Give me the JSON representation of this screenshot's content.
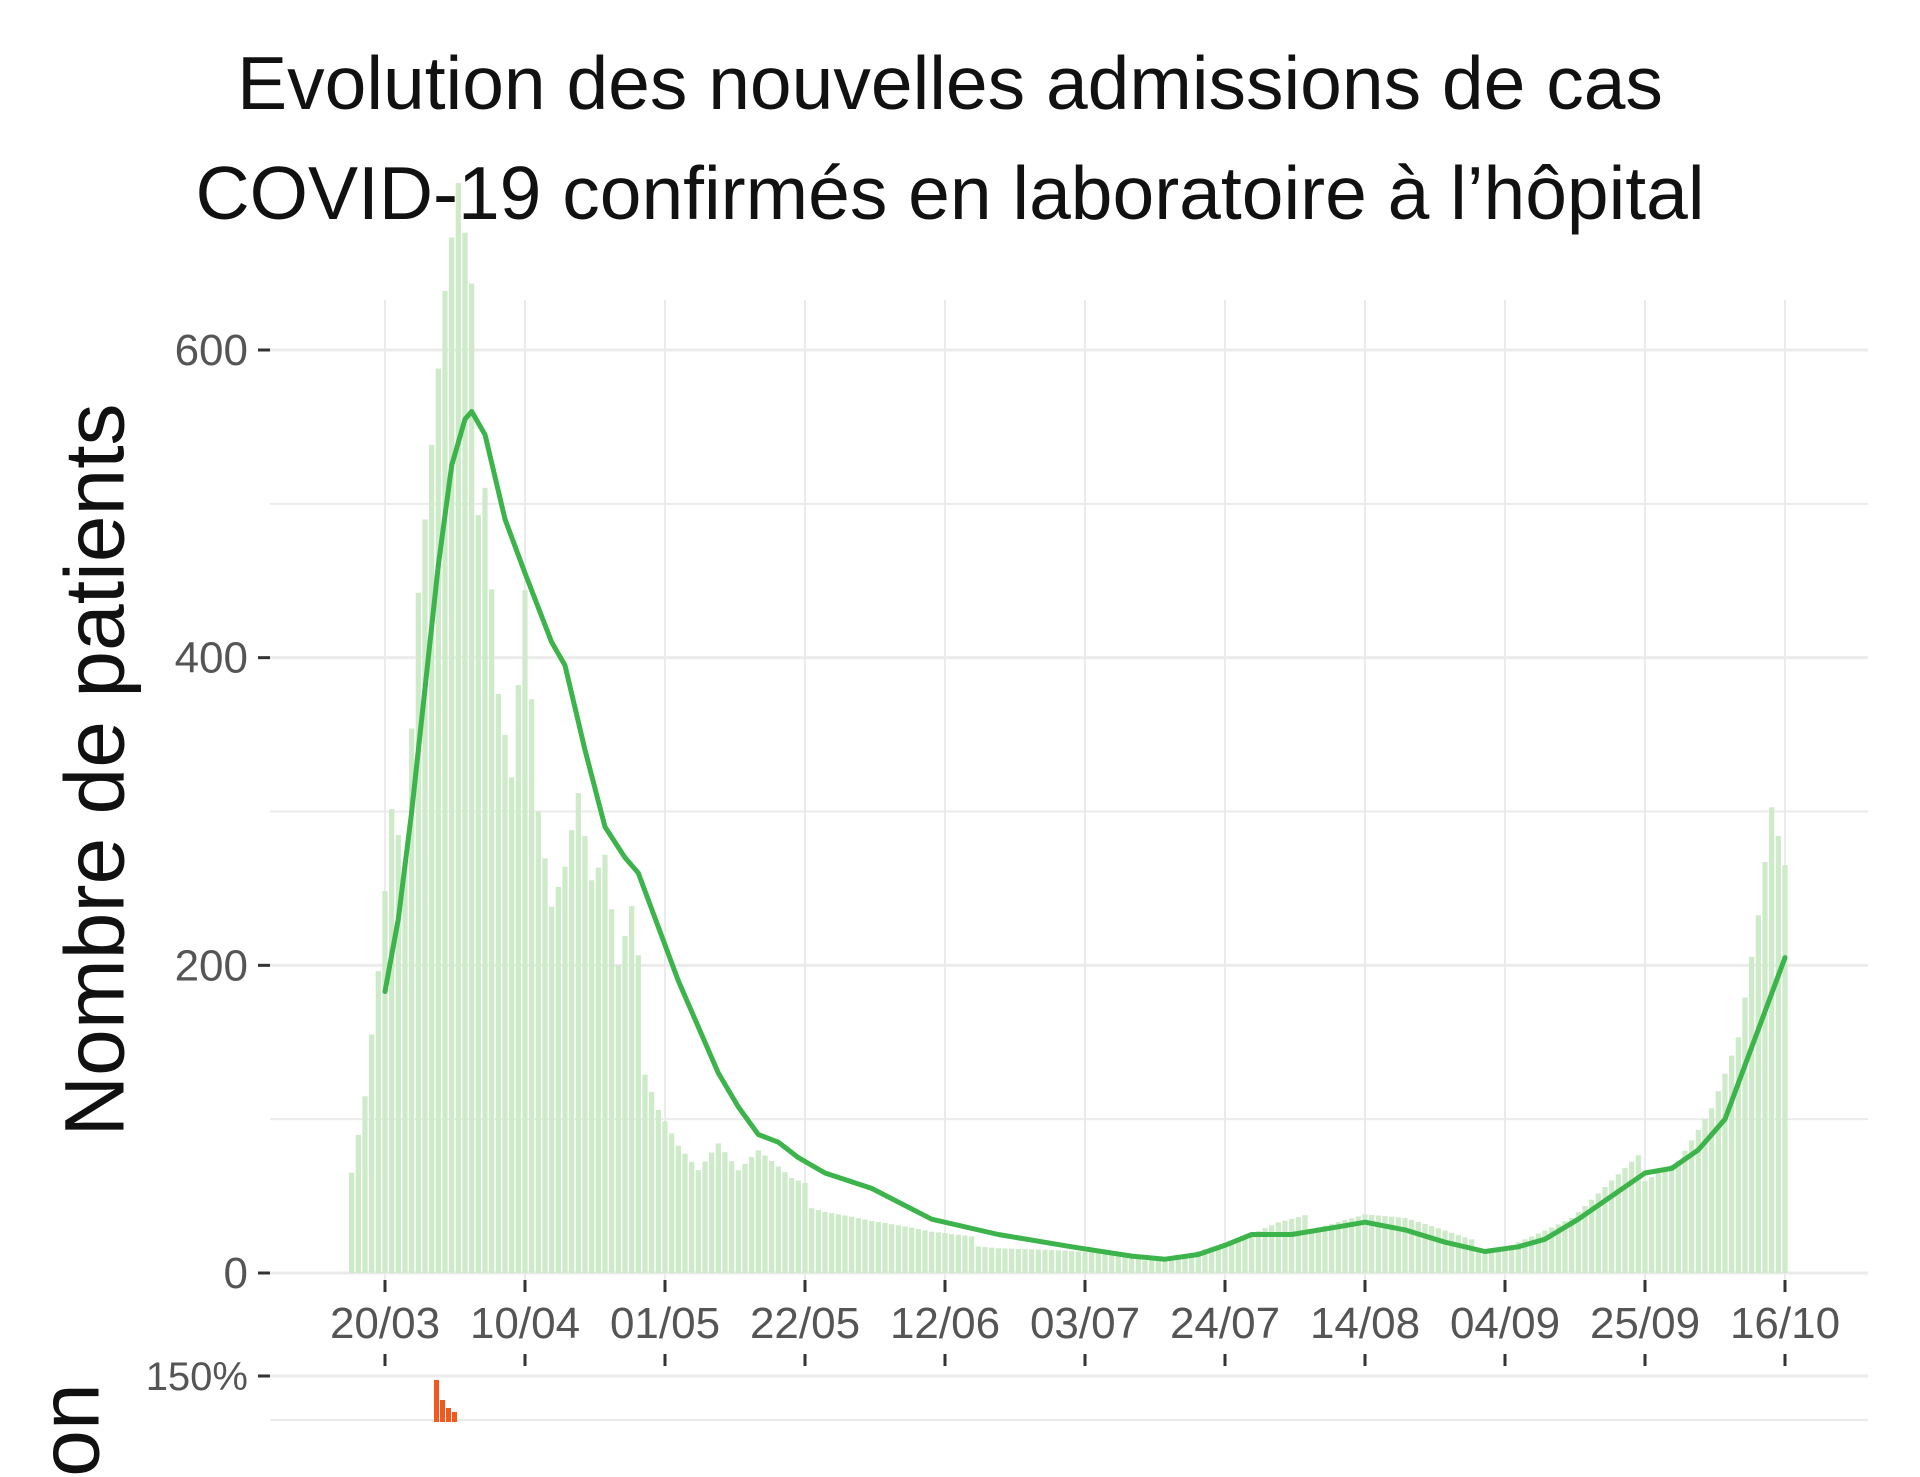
{
  "chart_data": {
    "type": "bar",
    "title": "Evolution des nouvelles admissions de cas COVID-19 confirmés en laboratoire à l’hôpital",
    "title_lines": [
      "Evolution des nouvelles admissions de cas",
      "COVID-19 confirmés en laboratoire à l’hôpital"
    ],
    "ylabel": "Nombre de patients",
    "ylim": [
      0,
      650
    ],
    "y_ticks": [
      0,
      200,
      400,
      600
    ],
    "x_ticks": [
      "20/03",
      "10/04",
      "01/05",
      "22/05",
      "12/06",
      "03/07",
      "24/07",
      "14/08",
      "04/09",
      "25/09",
      "16/10"
    ],
    "grid": true,
    "colors": {
      "bars": "#cdebc9",
      "line": "#3cb44b",
      "grid": "#ebebeb",
      "bottom_bars": "#f05a1e"
    },
    "bars_start_date": "2020-03-15",
    "bars_end_date": "2020-10-16",
    "line_start_date": "2020-03-20",
    "series": [
      {
        "type": "bar",
        "daily_values_keypoints": [
          [
            "2020-03-15",
            70
          ],
          [
            "2020-03-17",
            120
          ],
          [
            "2020-03-19",
            200
          ],
          [
            "2020-03-21",
            300
          ],
          [
            "2020-03-23",
            260
          ],
          [
            "2020-03-25",
            420
          ],
          [
            "2020-03-27",
            500
          ],
          [
            "2020-03-29",
            580
          ],
          [
            "2020-03-31",
            630
          ],
          [
            "2020-04-02",
            560
          ],
          [
            "2020-04-04",
            585
          ],
          [
            "2020-04-06",
            420
          ],
          [
            "2020-04-08",
            350
          ],
          [
            "2020-04-10",
            470
          ],
          [
            "2020-04-12",
            310
          ],
          [
            "2020-04-14",
            240
          ],
          [
            "2020-04-16",
            260
          ],
          [
            "2020-04-18",
            300
          ],
          [
            "2020-04-20",
            240
          ],
          [
            "2020-04-22",
            250
          ],
          [
            "2020-04-24",
            180
          ],
          [
            "2020-04-26",
            210
          ],
          [
            "2020-04-28",
            150
          ],
          [
            "2020-04-30",
            120
          ],
          [
            "2020-05-03",
            90
          ],
          [
            "2020-05-06",
            70
          ],
          [
            "2020-05-09",
            85
          ],
          [
            "2020-05-12",
            65
          ],
          [
            "2020-05-15",
            75
          ],
          [
            "2020-05-20",
            55
          ],
          [
            "2020-05-25",
            45
          ],
          [
            "2020-06-01",
            35
          ],
          [
            "2020-06-10",
            25
          ],
          [
            "2020-06-20",
            18
          ],
          [
            "2020-07-01",
            14
          ],
          [
            "2020-07-10",
            10
          ],
          [
            "2020-07-15",
            9
          ],
          [
            "2020-07-20",
            15
          ],
          [
            "2020-07-25",
            20
          ],
          [
            "2020-08-01",
            30
          ],
          [
            "2020-08-08",
            35
          ],
          [
            "2020-08-14",
            40
          ],
          [
            "2020-08-20",
            35
          ],
          [
            "2020-08-28",
            22
          ],
          [
            "2020-09-02",
            15
          ],
          [
            "2020-09-08",
            25
          ],
          [
            "2020-09-14",
            35
          ],
          [
            "2020-09-20",
            55
          ],
          [
            "2020-09-25",
            70
          ],
          [
            "2020-09-30",
            80
          ],
          [
            "2020-10-05",
            110
          ],
          [
            "2020-10-09",
            150
          ],
          [
            "2020-10-12",
            220
          ],
          [
            "2020-10-14",
            280
          ],
          [
            "2020-10-16",
            240
          ]
        ]
      },
      {
        "type": "line",
        "points": [
          [
            "2020-03-20",
            183
          ],
          [
            "2020-03-22",
            230
          ],
          [
            "2020-03-24",
            300
          ],
          [
            "2020-03-26",
            380
          ],
          [
            "2020-03-28",
            460
          ],
          [
            "2020-03-30",
            525
          ],
          [
            "2020-04-01",
            555
          ],
          [
            "2020-04-02",
            560
          ],
          [
            "2020-04-04",
            545
          ],
          [
            "2020-04-07",
            490
          ],
          [
            "2020-04-10",
            455
          ],
          [
            "2020-04-14",
            410
          ],
          [
            "2020-04-16",
            395
          ],
          [
            "2020-04-19",
            340
          ],
          [
            "2020-04-22",
            290
          ],
          [
            "2020-04-25",
            270
          ],
          [
            "2020-04-27",
            260
          ],
          [
            "2020-04-30",
            225
          ],
          [
            "2020-05-03",
            190
          ],
          [
            "2020-05-06",
            160
          ],
          [
            "2020-05-09",
            130
          ],
          [
            "2020-05-12",
            108
          ],
          [
            "2020-05-15",
            90
          ],
          [
            "2020-05-18",
            85
          ],
          [
            "2020-05-21",
            75
          ],
          [
            "2020-05-25",
            65
          ],
          [
            "2020-06-01",
            55
          ],
          [
            "2020-06-10",
            35
          ],
          [
            "2020-06-20",
            25
          ],
          [
            "2020-07-01",
            17
          ],
          [
            "2020-07-10",
            11
          ],
          [
            "2020-07-15",
            9
          ],
          [
            "2020-07-20",
            12
          ],
          [
            "2020-07-24",
            18
          ],
          [
            "2020-07-28",
            25
          ],
          [
            "2020-08-03",
            25
          ],
          [
            "2020-08-10",
            30
          ],
          [
            "2020-08-14",
            33
          ],
          [
            "2020-08-20",
            28
          ],
          [
            "2020-08-26",
            20
          ],
          [
            "2020-09-01",
            14
          ],
          [
            "2020-09-06",
            17
          ],
          [
            "2020-09-10",
            22
          ],
          [
            "2020-09-15",
            35
          ],
          [
            "2020-09-20",
            50
          ],
          [
            "2020-09-25",
            65
          ],
          [
            "2020-09-29",
            68
          ],
          [
            "2020-10-03",
            80
          ],
          [
            "2020-10-07",
            100
          ],
          [
            "2020-10-10",
            135
          ],
          [
            "2020-10-13",
            170
          ],
          [
            "2020-10-16",
            205
          ]
        ]
      }
    ],
    "bottom_panel": {
      "y_ticks": [
        "150%"
      ],
      "ylabel": "on"
    }
  }
}
